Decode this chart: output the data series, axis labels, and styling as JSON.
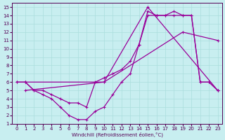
{
  "xlabel": "Windchill (Refroidissement éolien,°C)",
  "background_color": "#c8eef0",
  "grid_color": "#aadddd",
  "line_color": "#990099",
  "xlim": [
    -0.5,
    23.5
  ],
  "ylim": [
    1,
    15.5
  ],
  "xticks": [
    0,
    1,
    2,
    3,
    4,
    5,
    6,
    7,
    8,
    9,
    10,
    11,
    12,
    13,
    14,
    15,
    16,
    17,
    18,
    19,
    20,
    21,
    22,
    23
  ],
  "yticks": [
    1,
    2,
    3,
    4,
    5,
    6,
    7,
    8,
    9,
    10,
    11,
    12,
    13,
    14,
    15
  ],
  "series1_x": [
    0,
    1,
    2,
    3,
    4,
    5,
    6,
    7,
    8,
    9,
    10,
    11,
    12,
    13,
    14,
    15,
    16,
    17,
    18,
    19,
    20,
    21,
    22,
    23
  ],
  "series1_y": [
    6,
    6,
    5,
    5,
    4.5,
    4,
    3.5,
    3.5,
    3,
    6,
    6.5,
    7,
    7.5,
    8.5,
    10.5,
    14,
    14,
    14,
    14,
    14,
    14,
    6,
    6,
    5
  ],
  "series2_x": [
    0,
    1,
    2,
    3,
    4,
    5,
    6,
    7,
    8,
    9,
    10,
    11,
    12,
    13,
    14,
    15,
    16,
    17,
    18,
    19,
    20,
    21,
    22,
    23
  ],
  "series2_y": [
    6,
    6,
    5,
    4.5,
    4,
    3,
    2,
    1.5,
    1.5,
    2.5,
    3,
    4.5,
    6,
    7,
    10.5,
    14.5,
    14,
    14,
    14.5,
    14,
    14,
    6,
    6,
    5
  ],
  "series3_x": [
    1,
    10,
    15,
    23
  ],
  "series3_y": [
    6,
    6,
    15,
    5
  ],
  "series4_x": [
    1,
    10,
    19,
    23
  ],
  "series4_y": [
    5,
    6,
    12,
    11
  ]
}
